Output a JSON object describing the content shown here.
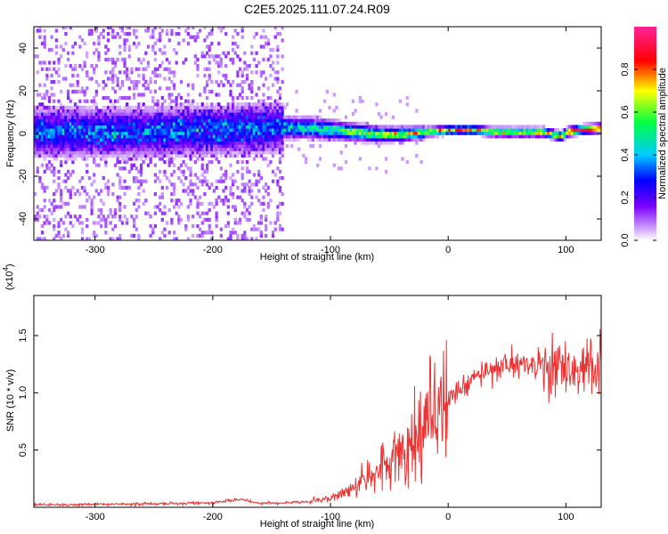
{
  "page_title": "C2E5.2025.111.07.24.R09",
  "chart_data": [
    {
      "type": "heatmap",
      "title": "C2E5.2025.111.07.24.R09",
      "xlabel": "Height of straight line (km)",
      "ylabel": "Frequency (Hz)",
      "xlim": [
        -352,
        130
      ],
      "ylim": [
        -50,
        50
      ],
      "x_ticks": [
        -300,
        -200,
        -100,
        0,
        100
      ],
      "x_tick_labels": [
        "-300",
        "-200",
        "-100",
        "0",
        "100"
      ],
      "y_ticks": [
        -40,
        -20,
        0,
        20,
        40
      ],
      "y_tick_labels": [
        "-40",
        "-20",
        "0",
        "20",
        "40"
      ],
      "colorbar": {
        "label": "Normalized spectral amplitude",
        "range": [
          0,
          1
        ],
        "ticks": [
          0.0,
          0.2,
          0.4,
          0.6,
          0.8
        ],
        "tick_labels": [
          "0.0",
          "0.2",
          "0.4",
          "0.6",
          "0.8"
        ],
        "colormap": "rainbow (white-purple-blue-cyan-green-yellow-red-magenta)"
      },
      "ridge": {
        "description": "peak frequency vs height",
        "x": [
          -352,
          -250,
          -150,
          -120,
          -100,
          -80,
          -60,
          -40,
          -20,
          0,
          20,
          40,
          60,
          80,
          95,
          100,
          110,
          130
        ],
        "y": [
          0,
          0,
          2,
          2,
          1,
          0,
          -1,
          -1,
          0,
          1,
          1,
          0,
          0,
          0,
          -2,
          0,
          1,
          2
        ]
      }
    },
    {
      "type": "line",
      "xlabel": "Height of straight line (km)",
      "ylabel": "SNR (10 * v/v)",
      "y_scale_label": "(x10",
      "y_scale_exponent": "4",
      "xlim": [
        -352,
        130
      ],
      "ylim": [
        0,
        18500
      ],
      "x_ticks": [
        -300,
        -200,
        -100,
        0,
        100
      ],
      "x_tick_labels": [
        "-300",
        "-200",
        "-100",
        "0",
        "100"
      ],
      "y_ticks": [
        5000,
        10000,
        15000
      ],
      "y_tick_labels": [
        "0.5",
        "1.0",
        "1.5"
      ],
      "line_color": "#ee3333",
      "series": [
        {
          "x": [
            -352,
            -300,
            -250,
            -200,
            -175,
            -160,
            -140,
            -120,
            -100,
            -90,
            -80,
            -70,
            -60,
            -50,
            -40,
            -30,
            -20,
            -10,
            0,
            10,
            20,
            30,
            40,
            50,
            60,
            70,
            80,
            90,
            100,
            110,
            120,
            130
          ],
          "values": [
            200,
            250,
            300,
            400,
            700,
            350,
            400,
            500,
            800,
            1200,
            1800,
            2500,
            3000,
            3800,
            4500,
            6000,
            7500,
            9000,
            9500,
            10200,
            11000,
            11800,
            12300,
            12500,
            12500,
            12400,
            12600,
            12500,
            12000,
            12000,
            12000,
            12200
          ]
        }
      ]
    }
  ]
}
